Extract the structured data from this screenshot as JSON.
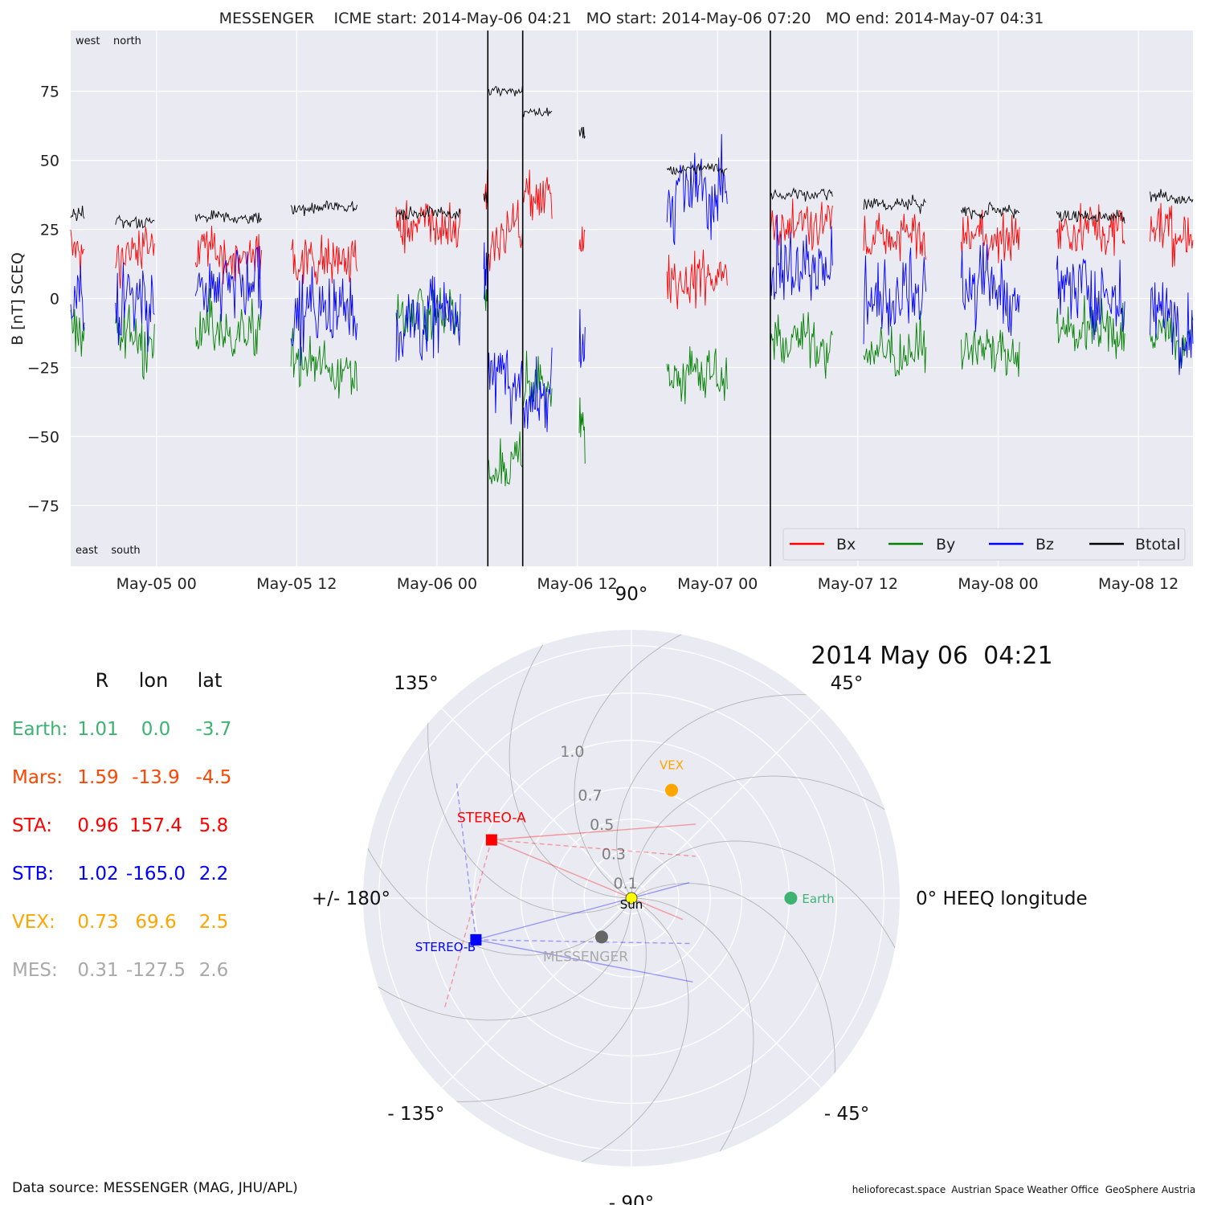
{
  "figure": {
    "title": "MESSENGER    ICME start: 2014-May-06 04:21   MO start: 2014-May-06 07:20   MO end: 2014-May-07 04:31",
    "source_note": "Data source: MESSENGER (MAG, JHU/APL)",
    "credits": [
      "helioforecast.space",
      "Austrian Space Weather Office",
      "GeoSphere Austria"
    ]
  },
  "chart_data": [
    {
      "type": "line",
      "ylabel": "B [nT] SCEQ",
      "xlabel": "",
      "ylim": [
        -97,
        97
      ],
      "xlim": [
        "2014-05-04 16:40",
        "2014-05-08 16:40"
      ],
      "yticks": [
        75,
        50,
        25,
        0,
        -25,
        -50,
        -75
      ],
      "ytick_labels": [
        "75",
        "50",
        "25",
        "0",
        "−25",
        "−50",
        "−75"
      ],
      "xticks": [
        "2014-05-05 00:00",
        "2014-05-05 12:00",
        "2014-05-06 00:00",
        "2014-05-06 12:00",
        "2014-05-07 00:00",
        "2014-05-07 12:00",
        "2014-05-08 00:00",
        "2014-05-08 12:00"
      ],
      "xtick_labels": [
        "May-05 00",
        "May-05 12",
        "May-06 00",
        "May-06 12",
        "May-07 00",
        "May-07 12",
        "May-08 00",
        "May-08 12"
      ],
      "grid": true,
      "legend": "bottom-right",
      "corner_labels": {
        "top_left": "west    north",
        "bottom_left": "east    south"
      },
      "event_lines": [
        "2014-05-06 04:21",
        "2014-05-06 07:20",
        "2014-05-07 04:31"
      ],
      "series": [
        {
          "name": "Bx",
          "color": "#ff0000"
        },
        {
          "name": "By",
          "color": "#008000"
        },
        {
          "name": "Bz",
          "color": "#0000ff"
        },
        {
          "name": "Btotal",
          "color": "#000000"
        }
      ],
      "segments": [
        {
          "start": "2014-05-04 16:40",
          "end": "2014-05-04 17:50",
          "btotal": 30,
          "bx": 17,
          "by": -12,
          "bz": -3
        },
        {
          "start": "2014-05-04 20:30",
          "end": "2014-05-04 23:50",
          "btotal": 28,
          "bx": 18,
          "by": -14,
          "bz": -2
        },
        {
          "start": "2014-05-05 03:20",
          "end": "2014-05-05 09:00",
          "btotal": 29,
          "bx": 16,
          "by": -12,
          "bz": 2
        },
        {
          "start": "2014-05-05 11:30",
          "end": "2014-05-05 17:10",
          "btotal": 33,
          "bx": 15,
          "by": -25,
          "bz": -5
        },
        {
          "start": "2014-05-05 20:30",
          "end": "2014-05-06 02:00",
          "btotal": 31,
          "bx": 26,
          "by": -5,
          "bz": -8
        },
        {
          "start": "2014-05-06 04:00",
          "end": "2014-05-06 04:21",
          "btotal": 37,
          "bx": 37,
          "by": 0,
          "bz": 10
        },
        {
          "start": "2014-05-06 04:21",
          "end": "2014-05-06 07:20",
          "btotal": 75,
          "bx": 25,
          "by": -60,
          "bz": -25
        },
        {
          "start": "2014-05-06 07:20",
          "end": "2014-05-06 09:50",
          "btotal": 67,
          "bx": 35,
          "by": -35,
          "bz": -35
        },
        {
          "start": "2014-05-06 12:10",
          "end": "2014-05-06 12:40",
          "btotal": 60,
          "bx": 20,
          "by": -48,
          "bz": -15
        },
        {
          "start": "2014-05-06 19:40",
          "end": "2014-05-07 00:50",
          "btotal": 47,
          "bx": 8,
          "by": -27,
          "bz": 38
        },
        {
          "start": "2014-05-07 04:31",
          "end": "2014-05-07 09:50",
          "btotal": 38,
          "bx": 28,
          "by": -15,
          "bz": 10
        },
        {
          "start": "2014-05-07 12:30",
          "end": "2014-05-07 17:50",
          "btotal": 34,
          "bx": 22,
          "by": -20,
          "bz": 0
        },
        {
          "start": "2014-05-07 20:50",
          "end": "2014-05-08 01:50",
          "btotal": 32,
          "bx": 22,
          "by": -18,
          "bz": 2
        },
        {
          "start": "2014-05-08 05:00",
          "end": "2014-05-08 10:50",
          "btotal": 30,
          "bx": 25,
          "by": -10,
          "bz": 2
        },
        {
          "start": "2014-05-08 13:00",
          "end": "2014-05-08 16:40",
          "btotal": 37,
          "bx": 25,
          "by": -15,
          "bz": -5
        }
      ]
    },
    {
      "type": "scatter",
      "subtype": "polar",
      "title": "2014 May 06  04:21",
      "theta_labels": [
        {
          "deg": 90,
          "label": "90°"
        },
        {
          "deg": 45,
          "label": "45°"
        },
        {
          "deg": 0,
          "label": "0° HEEQ longitude"
        },
        {
          "deg": -45,
          "label": "- 45°"
        },
        {
          "deg": -90,
          "label": "- 90°"
        },
        {
          "deg": -135,
          "label": "- 135°"
        },
        {
          "deg": 180,
          "label": "+/- 180°"
        },
        {
          "deg": 135,
          "label": "135°"
        }
      ],
      "rmax": 1.7,
      "r_rings": [
        0.1,
        0.3,
        0.5,
        0.7,
        1.0,
        1.3,
        1.6
      ],
      "r_labels": [
        {
          "r": 0.1,
          "label": "0.1"
        },
        {
          "r": 0.3,
          "label": "0.3"
        },
        {
          "r": 0.5,
          "label": "0.5"
        },
        {
          "r": 0.7,
          "label": "0.7"
        },
        {
          "r": 1.0,
          "label": "1.0"
        }
      ],
      "bodies": [
        {
          "name": "Sun",
          "label": "Sun",
          "r": 0.0,
          "lon": 0.0,
          "color": "#ffff00",
          "marker": "circle"
        },
        {
          "name": "Earth",
          "label": "Earth",
          "r": 1.01,
          "lon": 0.0,
          "color": "#3cb371",
          "marker": "circle"
        },
        {
          "name": "VEX",
          "label": "VEX",
          "r": 0.73,
          "lon": 69.6,
          "color": "#ffa500",
          "marker": "circle"
        },
        {
          "name": "STEREO-A",
          "label": "STEREO-A",
          "r": 0.96,
          "lon": 157.4,
          "color": "#ff0000",
          "marker": "square"
        },
        {
          "name": "STEREO-B",
          "label": "STEREO-B",
          "r": 1.02,
          "lon": -165.0,
          "color": "#0000ff",
          "marker": "square"
        },
        {
          "name": "MESSENGER",
          "label": "MESSENGER",
          "r": 0.31,
          "lon": -127.5,
          "color": "#666666",
          "label_color": "#a9a9a9",
          "marker": "circle"
        }
      ],
      "position_table": {
        "headers": [
          "R",
          "lon",
          "lat"
        ],
        "rows": [
          {
            "name": "Earth:",
            "r": "1.01",
            "lon": "0.0",
            "lat": "-3.7",
            "color": "#3cb371"
          },
          {
            "name": "Mars:",
            "r": "1.59",
            "lon": "-13.9",
            "lat": "-4.5",
            "color": "#ff4500"
          },
          {
            "name": "STA:",
            "r": "0.96",
            "lon": "157.4",
            "lat": "5.8",
            "color": "#ff0000"
          },
          {
            "name": "STB:",
            "r": "1.02",
            "lon": "-165.0",
            "lat": "2.2",
            "color": "#0000ff"
          },
          {
            "name": "VEX:",
            "r": "0.73",
            "lon": "69.6",
            "lat": "2.5",
            "color": "#ffa500"
          },
          {
            "name": "MES:",
            "r": "0.31",
            "lon": "-127.5",
            "lat": "2.6",
            "color": "#a9a9a9"
          }
        ]
      }
    }
  ]
}
